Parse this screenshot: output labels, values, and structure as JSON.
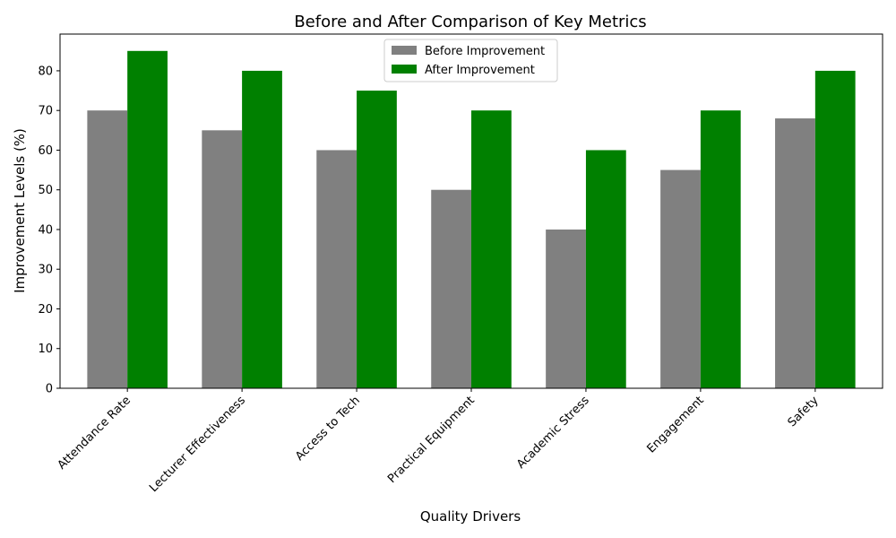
{
  "chart_data": {
    "type": "bar",
    "title": "Before and After Comparison of Key Metrics",
    "xlabel": "Quality Drivers",
    "ylabel": "Improvement Levels (%)",
    "categories": [
      "Attendance Rate",
      "Lecturer Effectiveness",
      "Access to Tech",
      "Practical Equipment",
      "Academic Stress",
      "Engagement",
      "Safety"
    ],
    "series": [
      {
        "name": "Before Improvement",
        "color": "#808080",
        "values": [
          70,
          65,
          60,
          50,
          40,
          55,
          68
        ]
      },
      {
        "name": "After Improvement",
        "color": "#008000",
        "values": [
          85,
          80,
          75,
          70,
          60,
          70,
          80
        ]
      }
    ],
    "ylim": [
      0,
      89.25
    ],
    "yticks": [
      0,
      10,
      20,
      30,
      40,
      50,
      60,
      70,
      80
    ],
    "legend_position": "top-center",
    "grid": false
  }
}
